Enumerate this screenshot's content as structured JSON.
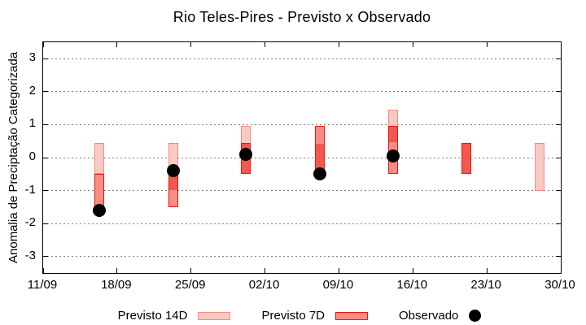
{
  "chart_data": {
    "type": "range-bar+scatter",
    "title": "Rio Teles-Pires - Previsto x Observado",
    "ylabel": "Anomalia de Preciptação Categorizada",
    "ylim": [
      -3.5,
      3.5
    ],
    "yticks": [
      3,
      2,
      1,
      0,
      -1,
      -2,
      -3
    ],
    "grid": "dotted horizontal lines at integer y values",
    "x_axis": {
      "total_days": 49,
      "ticks": [
        {
          "day": 0,
          "label": "11/09"
        },
        {
          "day": 7,
          "label": "18/09"
        },
        {
          "day": 14,
          "label": "25/09"
        },
        {
          "day": 21,
          "label": "02/10"
        },
        {
          "day": 28,
          "label": "09/10"
        },
        {
          "day": 35,
          "label": "16/10"
        },
        {
          "day": 42,
          "label": "23/10"
        },
        {
          "day": 49,
          "label": "30/10"
        }
      ]
    },
    "series_legend": [
      {
        "label": "Previsto 14D",
        "swatch": "light-pink-box"
      },
      {
        "label": "Previsto 7D",
        "swatch": "red-box"
      },
      {
        "label": "Observado",
        "swatch": "black-dot"
      }
    ],
    "points": [
      {
        "date": "16/09",
        "x_day": 5.3,
        "previsto_14d": [
          -0.5,
          0.45
        ],
        "previsto_7d": [
          -1.5,
          -0.5
        ],
        "observado": -1.6
      },
      {
        "date": "23/09",
        "x_day": 12.3,
        "previsto_14d": [
          -1.0,
          0.45
        ],
        "previsto_7d": [
          -1.5,
          -0.5
        ],
        "observado": -0.4
      },
      {
        "date": "30/09",
        "x_day": 19.2,
        "previsto_14d": [
          -0.5,
          0.95
        ],
        "previsto_7d": [
          -0.5,
          0.45
        ],
        "observado": 0.1
      },
      {
        "date": "07/10",
        "x_day": 26.2,
        "previsto_14d": [
          -0.5,
          0.45
        ],
        "previsto_7d": [
          -0.5,
          0.95
        ],
        "observado": -0.5
      },
      {
        "date": "14/10",
        "x_day": 33.1,
        "previsto_14d": [
          0.45,
          1.45
        ],
        "previsto_7d": [
          -0.5,
          0.95
        ],
        "observado": 0.05
      },
      {
        "date": "21/10",
        "x_day": 40.1,
        "previsto_14d": [
          -0.5,
          0.45
        ],
        "previsto_7d": [
          -0.5,
          0.45
        ],
        "observado": null
      },
      {
        "date": "28/10",
        "x_day": 47.0,
        "previsto_14d": [
          -1.0,
          0.45
        ],
        "previsto_7d": null,
        "observado": null
      }
    ],
    "colors": {
      "previsto14_fill": "#f9c9c3",
      "previsto14_border": "#ef8d82",
      "previsto7_fill": "#f98d85",
      "previsto7_border": "#e8170b",
      "overlap_fill": "#f4574d",
      "observado": "#000000",
      "grid": "#7f7f7f",
      "axis": "#000000"
    }
  }
}
